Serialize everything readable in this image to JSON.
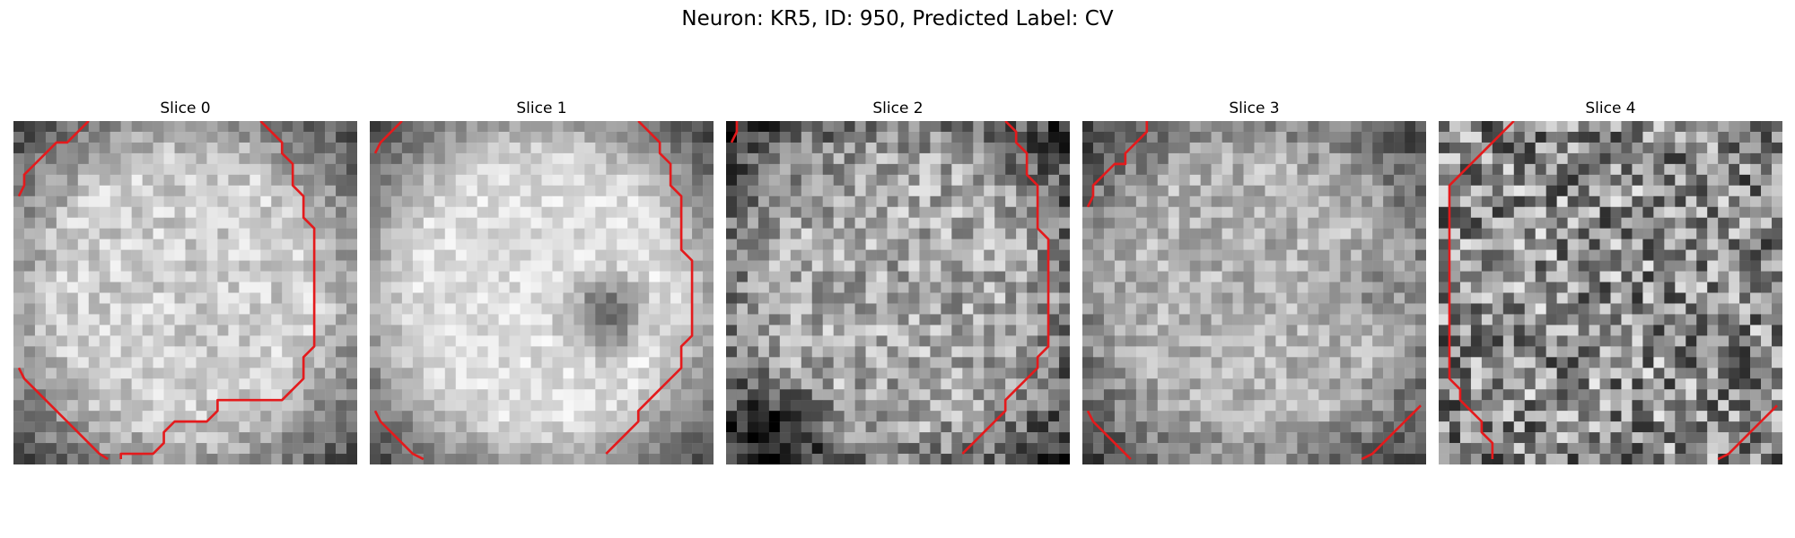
{
  "figure": {
    "title": "Neuron: KR5, ID: 950, Predicted Label: CV"
  },
  "overlay_color": "#e41a1c",
  "slices": [
    {
      "title": "Slice 0"
    },
    {
      "title": "Slice 1"
    },
    {
      "title": "Slice 2"
    },
    {
      "title": "Slice 3"
    },
    {
      "title": "Slice 4"
    }
  ]
}
